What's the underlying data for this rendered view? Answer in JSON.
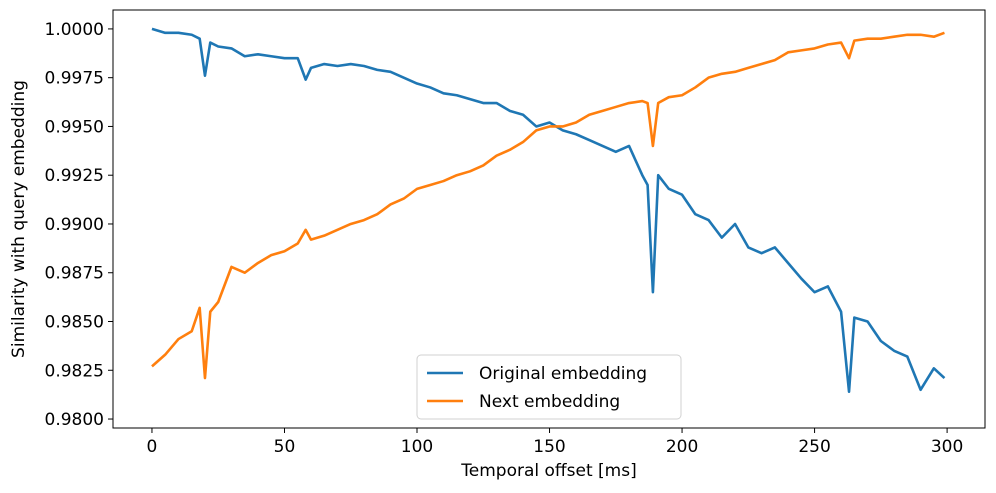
{
  "chart_data": {
    "type": "line",
    "xlabel": "Temporal offset [ms]",
    "ylabel": "Similarity with query embedding",
    "x": [
      0,
      5,
      10,
      15,
      18,
      20,
      22,
      25,
      30,
      35,
      40,
      45,
      50,
      55,
      58,
      60,
      65,
      70,
      75,
      80,
      85,
      90,
      95,
      100,
      105,
      110,
      115,
      120,
      125,
      130,
      135,
      140,
      145,
      150,
      155,
      160,
      165,
      170,
      175,
      180,
      185,
      187,
      189,
      191,
      195,
      200,
      205,
      210,
      215,
      220,
      225,
      230,
      235,
      240,
      245,
      250,
      255,
      260,
      263,
      265,
      270,
      275,
      280,
      285,
      290,
      295,
      299
    ],
    "series": [
      {
        "name": "Original embedding",
        "color": "#1f77b4",
        "values": [
          1.0,
          0.9998,
          0.9998,
          0.9997,
          0.9995,
          0.9976,
          0.9993,
          0.9991,
          0.999,
          0.9986,
          0.9987,
          0.9986,
          0.9985,
          0.9985,
          0.9974,
          0.998,
          0.9982,
          0.9981,
          0.9982,
          0.9981,
          0.9979,
          0.9978,
          0.9975,
          0.9972,
          0.997,
          0.9967,
          0.9966,
          0.9964,
          0.9962,
          0.9962,
          0.9958,
          0.9956,
          0.995,
          0.9952,
          0.9948,
          0.9946,
          0.9943,
          0.994,
          0.9937,
          0.994,
          0.9925,
          0.992,
          0.9865,
          0.9925,
          0.9918,
          0.9915,
          0.9905,
          0.9902,
          0.9893,
          0.99,
          0.9888,
          0.9885,
          0.9888,
          0.988,
          0.9872,
          0.9865,
          0.9868,
          0.9855,
          0.9814,
          0.9852,
          0.985,
          0.984,
          0.9835,
          0.9832,
          0.9815,
          0.9826,
          0.9821
        ]
      },
      {
        "name": "Next embedding",
        "color": "#ff7f0e",
        "values": [
          0.9827,
          0.9833,
          0.9841,
          0.9845,
          0.9857,
          0.9821,
          0.9855,
          0.986,
          0.9878,
          0.9875,
          0.988,
          0.9884,
          0.9886,
          0.989,
          0.9897,
          0.9892,
          0.9894,
          0.9897,
          0.99,
          0.9902,
          0.9905,
          0.991,
          0.9913,
          0.9918,
          0.992,
          0.9922,
          0.9925,
          0.9927,
          0.993,
          0.9935,
          0.9938,
          0.9942,
          0.9948,
          0.995,
          0.995,
          0.9952,
          0.9956,
          0.9958,
          0.996,
          0.9962,
          0.9963,
          0.9962,
          0.994,
          0.9962,
          0.9965,
          0.9966,
          0.997,
          0.9975,
          0.9977,
          0.9978,
          0.998,
          0.9982,
          0.9984,
          0.9988,
          0.9989,
          0.999,
          0.9992,
          0.9993,
          0.9985,
          0.9994,
          0.9995,
          0.9995,
          0.9996,
          0.9997,
          0.9997,
          0.9996,
          0.9998
        ]
      }
    ],
    "xlim": [
      -14.7,
      314.3
    ],
    "xticks": [
      0,
      50,
      100,
      150,
      200,
      250,
      300
    ],
    "ylim": [
      0.97954,
      1.00097
    ],
    "yticks": [
      {
        "value": 0.98,
        "label": "0.9800"
      },
      {
        "value": 0.9825,
        "label": "0.9825"
      },
      {
        "value": 0.985,
        "label": "0.9850"
      },
      {
        "value": 0.9875,
        "label": "0.9875"
      },
      {
        "value": 0.99,
        "label": "0.9900"
      },
      {
        "value": 0.9925,
        "label": "0.9925"
      },
      {
        "value": 0.995,
        "label": "0.9950"
      },
      {
        "value": 0.9975,
        "label": "0.9975"
      },
      {
        "value": 1.0,
        "label": "1.0000"
      }
    ],
    "legend": "lower center",
    "grid": false
  }
}
